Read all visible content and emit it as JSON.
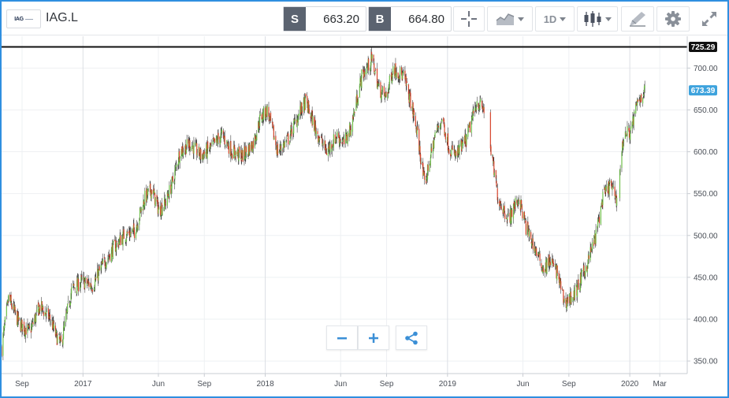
{
  "toolbar": {
    "logo_text": "IAG",
    "ticker": "IAG.L",
    "sell_tag": "S",
    "sell_price": "663.20",
    "buy_tag": "B",
    "buy_price": "664.80",
    "interval": "1D"
  },
  "chart_data": {
    "type": "candlestick",
    "title": "",
    "xlabel": "",
    "ylabel": "",
    "ylim": [
      335,
      738
    ],
    "y_ticks": [
      "350.00",
      "400.00",
      "450.00",
      "500.00",
      "550.00",
      "600.00",
      "650.00",
      "700.00"
    ],
    "x_ticks": [
      "Sep",
      "2017",
      "Jun",
      "Sep",
      "2018",
      "Jun",
      "Sep",
      "2019",
      "Jun",
      "Sep",
      "2020",
      "Mar"
    ],
    "x_tick_dates": [
      "2016-09-01",
      "2017-01-01",
      "2017-06-01",
      "2017-09-01",
      "2018-01-01",
      "2018-06-01",
      "2018-09-01",
      "2019-01-01",
      "2019-06-01",
      "2019-09-01",
      "2020-01-01",
      "2020-03-01"
    ],
    "xlim": [
      "2016-07-22",
      "2020-04-25"
    ],
    "grid": true,
    "horizontal_line": {
      "value": 725.29,
      "label": "725.29"
    },
    "last_price": {
      "value": 673.39,
      "label": "673.39"
    },
    "up_color": "#6fbf4a",
    "down_color": "#d8442a",
    "approx_closes": [
      [
        "2016-07-22",
        365
      ],
      [
        "2016-08-05",
        425
      ],
      [
        "2016-08-26",
        395
      ],
      [
        "2016-09-16",
        385
      ],
      [
        "2016-10-07",
        415
      ],
      [
        "2016-10-28",
        400
      ],
      [
        "2016-11-08",
        380
      ],
      [
        "2016-11-18",
        370
      ],
      [
        "2016-12-09",
        435
      ],
      [
        "2016-12-30",
        445
      ],
      [
        "2017-01-20",
        440
      ],
      [
        "2017-02-10",
        465
      ],
      [
        "2017-03-03",
        485
      ],
      [
        "2017-03-24",
        500
      ],
      [
        "2017-04-14",
        505
      ],
      [
        "2017-05-05",
        545
      ],
      [
        "2017-05-19",
        555
      ],
      [
        "2017-06-02",
        530
      ],
      [
        "2017-06-16",
        540
      ],
      [
        "2017-06-30",
        565
      ],
      [
        "2017-07-14",
        600
      ],
      [
        "2017-08-04",
        610
      ],
      [
        "2017-08-25",
        595
      ],
      [
        "2017-09-15",
        605
      ],
      [
        "2017-10-06",
        620
      ],
      [
        "2017-10-27",
        600
      ],
      [
        "2017-11-17",
        595
      ],
      [
        "2017-12-08",
        610
      ],
      [
        "2017-12-22",
        640
      ],
      [
        "2018-01-05",
        650
      ],
      [
        "2018-01-26",
        600
      ],
      [
        "2018-02-16",
        615
      ],
      [
        "2018-03-09",
        645
      ],
      [
        "2018-03-23",
        660
      ],
      [
        "2018-04-13",
        625
      ],
      [
        "2018-05-04",
        600
      ],
      [
        "2018-05-25",
        620
      ],
      [
        "2018-06-08",
        610
      ],
      [
        "2018-06-22",
        630
      ],
      [
        "2018-07-13",
        690
      ],
      [
        "2018-08-03",
        710
      ],
      [
        "2018-08-17",
        675
      ],
      [
        "2018-08-31",
        665
      ],
      [
        "2018-09-14",
        700
      ],
      [
        "2018-10-05",
        690
      ],
      [
        "2018-10-19",
        660
      ],
      [
        "2018-11-02",
        620
      ],
      [
        "2018-11-16",
        560
      ],
      [
        "2018-12-07",
        620
      ],
      [
        "2018-12-21",
        640
      ],
      [
        "2019-01-04",
        605
      ],
      [
        "2019-01-18",
        595
      ],
      [
        "2019-02-08",
        615
      ],
      [
        "2019-03-01",
        660
      ],
      [
        "2019-03-15",
        650
      ],
      [
        "2019-03-29",
        600
      ],
      [
        "2019-04-12",
        545
      ],
      [
        "2019-05-03",
        520
      ],
      [
        "2019-05-24",
        545
      ],
      [
        "2019-06-07",
        510
      ],
      [
        "2019-06-21",
        490
      ],
      [
        "2019-07-12",
        460
      ],
      [
        "2019-07-26",
        470
      ],
      [
        "2019-08-09",
        455
      ],
      [
        "2019-08-23",
        420
      ],
      [
        "2019-09-13",
        430
      ],
      [
        "2019-10-04",
        460
      ],
      [
        "2019-10-25",
        500
      ],
      [
        "2019-11-08",
        545
      ],
      [
        "2019-11-22",
        560
      ],
      [
        "2019-12-06",
        545
      ],
      [
        "2019-12-20",
        620
      ],
      [
        "2020-01-03",
        625
      ],
      [
        "2020-01-17",
        660
      ],
      [
        "2020-01-31",
        673.39
      ]
    ]
  }
}
